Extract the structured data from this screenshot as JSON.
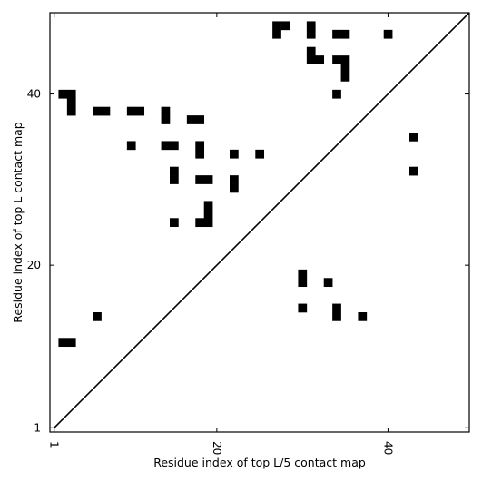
{
  "chart_data": {
    "type": "heatmap",
    "xlabel": "Residue index of top L/5 contact map",
    "ylabel": "Residue index of top L contact map",
    "xlim": [
      0.5,
      49.5
    ],
    "ylim": [
      0.5,
      49.5
    ],
    "x_ticks": [
      1,
      20,
      40
    ],
    "y_ticks": [
      1,
      20,
      40
    ],
    "diagonal": true,
    "cell_color": "#000000",
    "cells": [
      [
        27,
        48
      ],
      [
        28,
        48
      ],
      [
        27,
        47
      ],
      [
        31,
        48
      ],
      [
        31,
        47
      ],
      [
        34,
        47
      ],
      [
        35,
        47
      ],
      [
        40,
        47
      ],
      [
        31,
        45
      ],
      [
        31,
        44
      ],
      [
        32,
        44
      ],
      [
        34,
        44
      ],
      [
        35,
        44
      ],
      [
        35,
        43
      ],
      [
        35,
        42
      ],
      [
        34,
        40
      ],
      [
        2,
        40
      ],
      [
        3,
        40
      ],
      [
        3,
        39
      ],
      [
        3,
        38
      ],
      [
        6,
        38
      ],
      [
        7,
        38
      ],
      [
        10,
        38
      ],
      [
        11,
        38
      ],
      [
        14,
        38
      ],
      [
        14,
        37
      ],
      [
        17,
        37
      ],
      [
        18,
        37
      ],
      [
        43,
        35
      ],
      [
        10,
        34
      ],
      [
        14,
        34
      ],
      [
        15,
        34
      ],
      [
        18,
        34
      ],
      [
        18,
        33
      ],
      [
        22,
        33
      ],
      [
        25,
        33
      ],
      [
        43,
        31
      ],
      [
        15,
        31
      ],
      [
        15,
        30
      ],
      [
        18,
        30
      ],
      [
        19,
        30
      ],
      [
        22,
        30
      ],
      [
        22,
        29
      ],
      [
        19,
        27
      ],
      [
        19,
        26
      ],
      [
        15,
        25
      ],
      [
        18,
        25
      ],
      [
        19,
        25
      ],
      [
        30,
        19
      ],
      [
        30,
        18
      ],
      [
        33,
        18
      ],
      [
        30,
        15
      ],
      [
        34,
        15
      ],
      [
        34,
        14
      ],
      [
        6,
        14
      ],
      [
        37,
        14
      ],
      [
        2,
        11
      ],
      [
        3,
        11
      ]
    ]
  }
}
